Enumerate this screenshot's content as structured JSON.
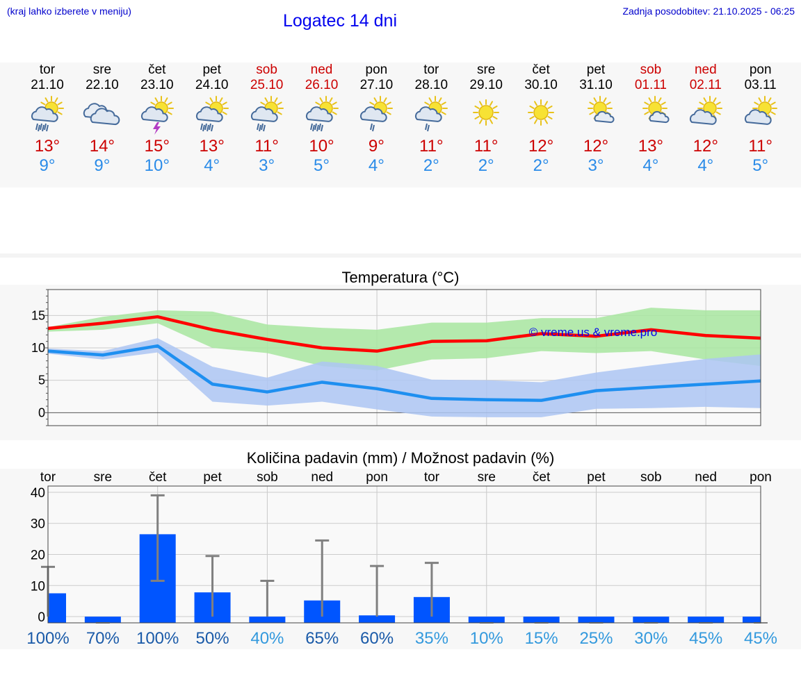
{
  "header": {
    "hint": "(kraj lahko izberete v meniju)",
    "title": "Logatec 14 dni",
    "updated": "Zadnja posodobitev: 21.10.2025 - 06:25"
  },
  "days": [
    {
      "name": "tor",
      "date": "21.10",
      "weekend": false,
      "icon": "sun-cloud-heavy-rain-icon",
      "tmax": "13°",
      "tmin": "9°"
    },
    {
      "name": "sre",
      "date": "22.10",
      "weekend": false,
      "icon": "cloudy-icon",
      "tmax": "14°",
      "tmin": "9°"
    },
    {
      "name": "čet",
      "date": "23.10",
      "weekend": false,
      "icon": "sun-thunderstorm-icon",
      "tmax": "15°",
      "tmin": "10°"
    },
    {
      "name": "pet",
      "date": "24.10",
      "weekend": false,
      "icon": "sun-cloud-heavy-rain-icon",
      "tmax": "13°",
      "tmin": "4°"
    },
    {
      "name": "sob",
      "date": "25.10",
      "weekend": true,
      "icon": "sun-cloud-rain-icon",
      "tmax": "11°",
      "tmin": "3°"
    },
    {
      "name": "ned",
      "date": "26.10",
      "weekend": true,
      "icon": "sun-cloud-heavy-rain-icon",
      "tmax": "10°",
      "tmin": "5°"
    },
    {
      "name": "pon",
      "date": "27.10",
      "weekend": false,
      "icon": "sun-cloud-light-rain-icon",
      "tmax": "9°",
      "tmin": "4°"
    },
    {
      "name": "tor",
      "date": "28.10",
      "weekend": false,
      "icon": "sun-cloud-light-rain-icon",
      "tmax": "11°",
      "tmin": "2°"
    },
    {
      "name": "sre",
      "date": "29.10",
      "weekend": false,
      "icon": "sun-icon",
      "tmax": "11°",
      "tmin": "2°"
    },
    {
      "name": "čet",
      "date": "30.10",
      "weekend": false,
      "icon": "sun-icon",
      "tmax": "12°",
      "tmin": "2°"
    },
    {
      "name": "pet",
      "date": "31.10",
      "weekend": false,
      "icon": "sun-small-cloud-icon",
      "tmax": "12°",
      "tmin": "3°"
    },
    {
      "name": "sob",
      "date": "01.11",
      "weekend": true,
      "icon": "sun-small-cloud-icon",
      "tmax": "13°",
      "tmin": "4°"
    },
    {
      "name": "ned",
      "date": "02.11",
      "weekend": true,
      "icon": "sun-cloud-icon",
      "tmax": "12°",
      "tmin": "4°"
    },
    {
      "name": "pon",
      "date": "03.11",
      "weekend": false,
      "icon": "sun-cloud-icon",
      "tmax": "11°",
      "tmin": "5°"
    }
  ],
  "chart_data": [
    {
      "type": "line",
      "title": "Temperatura (°C)",
      "watermark": "© vreme.us & vreme.pro",
      "ylim": [
        -2,
        19
      ],
      "yticks": [
        0,
        5,
        10,
        15
      ],
      "x_days": 14,
      "series": [
        {
          "name": "max",
          "color": "#ff0000",
          "values": [
            13,
            13.8,
            14.8,
            12.8,
            11.3,
            10,
            9.5,
            11,
            11.1,
            12.2,
            11.8,
            12.8,
            11.9,
            11.5
          ],
          "band_low": [
            12.5,
            12.8,
            13.8,
            10,
            9.2,
            7.2,
            6.5,
            8.2,
            8.4,
            9.5,
            9.2,
            9.5,
            8.2,
            7.2
          ],
          "band_high": [
            13.2,
            14.8,
            15.8,
            15.6,
            13.6,
            13.1,
            12.8,
            13.9,
            13.9,
            14.6,
            14.6,
            16.2,
            15.8,
            15.8
          ],
          "band_color": "#a8e6a0"
        },
        {
          "name": "min",
          "color": "#1e8ff0",
          "values": [
            9.5,
            8.9,
            10.3,
            4.4,
            3.2,
            4.7,
            3.7,
            2.2,
            2.0,
            1.9,
            3.4,
            3.9,
            4.4,
            4.9
          ],
          "band_low": [
            9.1,
            8.2,
            9.3,
            1.7,
            1.1,
            1.7,
            0.5,
            -0.6,
            -0.7,
            -0.7,
            0.6,
            0.7,
            0.9,
            0.7
          ],
          "band_high": [
            9.9,
            9.5,
            11.5,
            7.1,
            5.4,
            7.9,
            7.2,
            5.1,
            5.0,
            4.7,
            6.2,
            7.3,
            8.3,
            9.0
          ],
          "band_color": "#adc6f3"
        }
      ]
    },
    {
      "type": "bar",
      "title": "Količina padavin (mm) / Možnost padavin (%)",
      "categories": [
        "tor",
        "sre",
        "čet",
        "pet",
        "sob",
        "ned",
        "pon",
        "tor",
        "sre",
        "čet",
        "pet",
        "sob",
        "ned",
        "pon"
      ],
      "ylim": [
        -2,
        42
      ],
      "yticks": [
        0,
        10,
        20,
        30,
        40
      ],
      "values": [
        7.5,
        0,
        26.5,
        7.8,
        0,
        5.2,
        0.4,
        6.3,
        0,
        0,
        0,
        0,
        0,
        0
      ],
      "err_low": [
        0,
        0,
        11.5,
        0,
        0,
        0,
        0,
        0,
        0,
        0,
        0,
        0,
        0,
        0
      ],
      "err_high": [
        16,
        0,
        39,
        19.5,
        11.5,
        24.5,
        16.3,
        17.3,
        0,
        0,
        0,
        0,
        0,
        0
      ],
      "bar_color": "#0055ff",
      "probability": [
        "100%",
        "70%",
        "100%",
        "50%",
        "40%",
        "65%",
        "60%",
        "35%",
        "10%",
        "15%",
        "25%",
        "30%",
        "45%",
        "45%"
      ],
      "probability_colors": [
        "#1a5aa8",
        "#1a5aa8",
        "#1a5aa8",
        "#1a5aa8",
        "#3399dd",
        "#1a5aa8",
        "#1a5aa8",
        "#3399dd",
        "#3399dd",
        "#3399dd",
        "#3399dd",
        "#3399dd",
        "#3399dd",
        "#3399dd"
      ]
    }
  ]
}
